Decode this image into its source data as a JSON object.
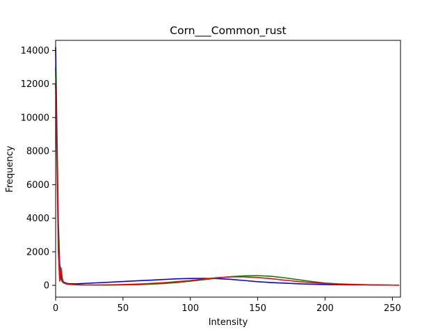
{
  "chart_data": {
    "type": "line",
    "title": "Corn___Common_rust",
    "xlabel": "Intensity",
    "ylabel": "Frequency",
    "xlim": [
      0,
      256
    ],
    "ylim": [
      -700,
      14600
    ],
    "xticks": [
      0,
      50,
      100,
      150,
      200,
      250
    ],
    "yticks": [
      0,
      2000,
      4000,
      6000,
      8000,
      10000,
      12000,
      14000
    ],
    "grid": false,
    "legend": "none",
    "series": [
      {
        "color": "#0000ff",
        "x": [
          0,
          1,
          2,
          3,
          4,
          5,
          6,
          8,
          10,
          15,
          20,
          30,
          40,
          50,
          60,
          70,
          80,
          90,
          100,
          110,
          120,
          130,
          140,
          150,
          160,
          170,
          180,
          190,
          200,
          210,
          220,
          230,
          240,
          250,
          255
        ],
        "y": [
          14200,
          9000,
          3800,
          1300,
          550,
          300,
          190,
          130,
          100,
          90,
          110,
          150,
          190,
          230,
          270,
          310,
          350,
          390,
          410,
          420,
          400,
          360,
          290,
          220,
          170,
          130,
          95,
          70,
          50,
          40,
          30,
          25,
          20,
          15,
          10
        ]
      },
      {
        "color": "#008000",
        "x": [
          0,
          1,
          2,
          3,
          4,
          5,
          6,
          8,
          10,
          15,
          20,
          30,
          40,
          50,
          60,
          70,
          80,
          90,
          100,
          110,
          120,
          130,
          140,
          150,
          160,
          170,
          180,
          190,
          200,
          210,
          220,
          230,
          240,
          250,
          255
        ],
        "y": [
          13000,
          8000,
          3000,
          900,
          350,
          200,
          140,
          90,
          70,
          45,
          30,
          20,
          20,
          25,
          40,
          70,
          110,
          170,
          250,
          340,
          430,
          520,
          570,
          580,
          540,
          450,
          340,
          230,
          140,
          90,
          60,
          40,
          25,
          15,
          10
        ]
      },
      {
        "color": "#ff0000",
        "x": [
          0,
          1,
          2,
          3,
          4,
          5,
          6,
          8,
          10,
          15,
          20,
          30,
          40,
          50,
          60,
          70,
          80,
          90,
          100,
          110,
          120,
          130,
          140,
          150,
          160,
          170,
          180,
          190,
          200,
          210,
          220,
          230,
          240,
          250,
          255
        ],
        "y": [
          12000,
          7000,
          2000,
          250,
          1050,
          400,
          150,
          80,
          60,
          35,
          25,
          25,
          35,
          50,
          75,
          110,
          160,
          220,
          290,
          380,
          460,
          510,
          510,
          470,
          400,
          310,
          230,
          160,
          110,
          75,
          55,
          40,
          30,
          20,
          15
        ]
      }
    ]
  }
}
